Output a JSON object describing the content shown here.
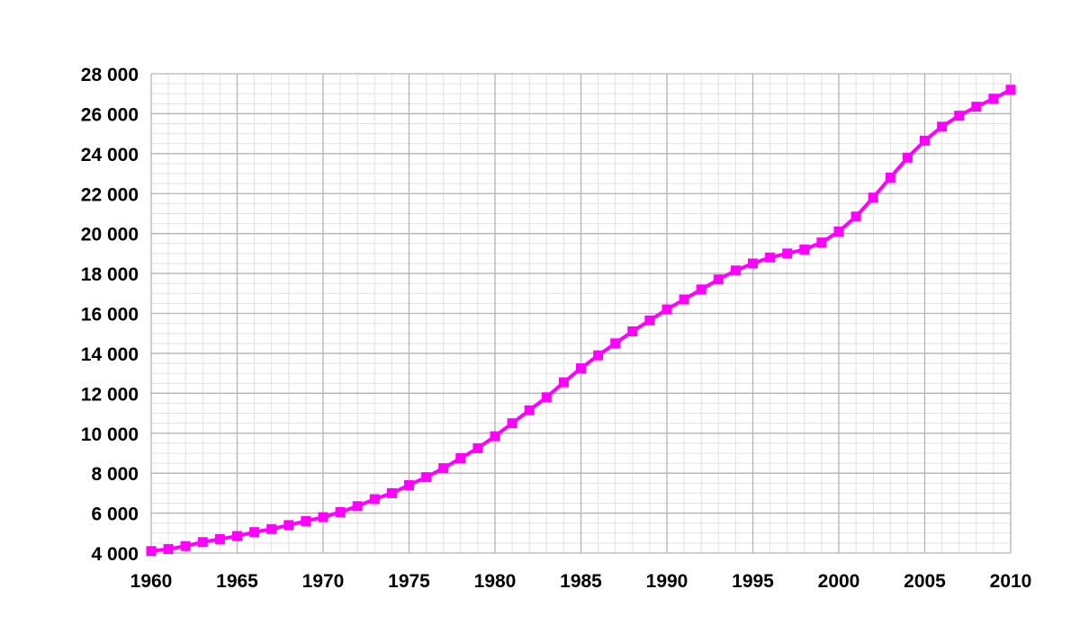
{
  "chart_data": {
    "type": "line",
    "title": "",
    "xlabel": "",
    "ylabel": "",
    "xlim": [
      1960,
      2010
    ],
    "ylim": [
      4000,
      28000
    ],
    "x_major_step": 5,
    "y_major_step": 2000,
    "x_ticks": [
      "1960",
      "1965",
      "1970",
      "1975",
      "1980",
      "1985",
      "1990",
      "1995",
      "2000",
      "2005",
      "2010"
    ],
    "y_ticks": [
      "4 000",
      "6 000",
      "8 000",
      "10 000",
      "12 000",
      "14 000",
      "16 000",
      "18 000",
      "20 000",
      "22 000",
      "24 000",
      "26 000",
      "28 000"
    ],
    "grid": true,
    "legend": "none",
    "line_color": "#ff00ff",
    "series": [
      {
        "x": [
          1960,
          1961,
          1962,
          1963,
          1964,
          1965,
          1966,
          1967,
          1968,
          1969,
          1970,
          1971,
          1972,
          1973,
          1974,
          1975,
          1976,
          1977,
          1978,
          1979,
          1980,
          1981,
          1982,
          1983,
          1984,
          1985,
          1986,
          1987,
          1988,
          1989,
          1990,
          1991,
          1992,
          1993,
          1994,
          1995,
          1996,
          1997,
          1998,
          1999,
          2000,
          2001,
          2002,
          2003,
          2004,
          2005,
          2006,
          2007,
          2008,
          2009,
          2010
        ],
        "y": [
          4100,
          4200,
          4350,
          4550,
          4700,
          4850,
          5050,
          5200,
          5400,
          5600,
          5800,
          6050,
          6350,
          6700,
          7000,
          7400,
          7800,
          8250,
          8750,
          9250,
          9850,
          10500,
          11150,
          11800,
          12550,
          13250,
          13900,
          14500,
          15100,
          15650,
          16200,
          16700,
          17200,
          17700,
          18150,
          18500,
          18800,
          19000,
          19200,
          19550,
          20100,
          20850,
          21800,
          22800,
          23800,
          24650,
          25350,
          25900,
          26350,
          26750,
          27200
        ]
      }
    ]
  }
}
